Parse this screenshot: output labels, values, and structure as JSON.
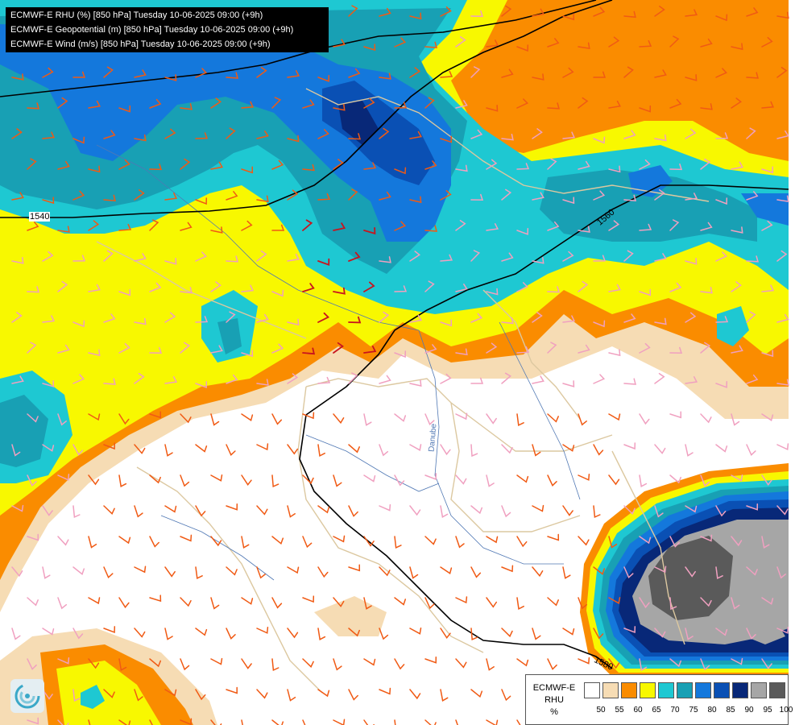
{
  "header": {
    "lines": [
      "ECMWF-E RHU (%) [850 hPa] Tuesday 10-06-2025 09:00 (+9h)",
      "ECMWF-E Geopotential (m) [850 hPa] Tuesday 10-06-2025 09:00 (+9h)",
      "ECMWF-E Wind (m/s) [850 hPa] Tuesday 10-06-2025 09:00 (+9h)"
    ]
  },
  "contours": {
    "labels": [
      "1540",
      "1560",
      "1580"
    ]
  },
  "map_labels": {
    "river": "Danube"
  },
  "legend": {
    "title_lines": [
      "ECMWF-E",
      "RHU",
      "%"
    ],
    "ticks": [
      "50",
      "55",
      "60",
      "65",
      "70",
      "75",
      "80",
      "85",
      "90",
      "95",
      "100"
    ],
    "colors": [
      "#ffffff",
      "#f6dcb4",
      "#fa8c00",
      "#f8f800",
      "#1ec8d2",
      "#18a0b4",
      "#1478dc",
      "#0a50b4",
      "#082878",
      "#a6a6a6",
      "#5a5a5a"
    ]
  },
  "colors": {
    "wind_orange": "#f05a14",
    "wind_red": "#c8141e",
    "wind_pink": "#f0a0c0",
    "border": "#dcc8a0",
    "river": "#5078b4"
  },
  "icons": {
    "logo": "ecmwf-swirl-logo"
  }
}
